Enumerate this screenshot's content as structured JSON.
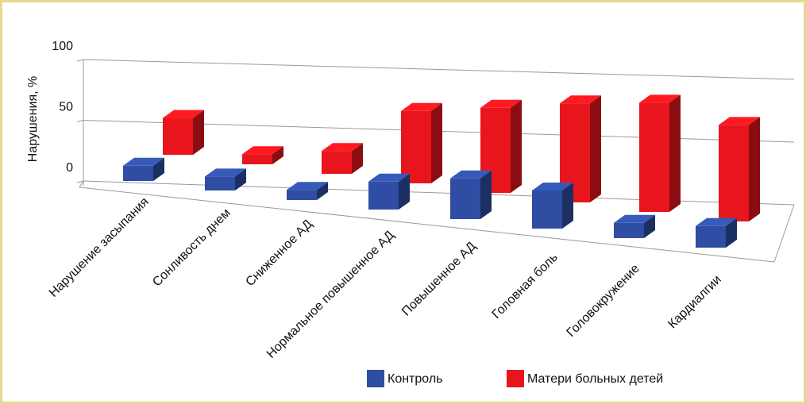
{
  "chart_data": {
    "type": "bar3d",
    "y_label": "Нарушения, %",
    "categories": [
      "Нарушение засыпания",
      "Сонливость днем",
      "Сниженное АД",
      "Нормальное повышенное АД",
      "Повышенное АД",
      "Головная боль",
      "Головокружение",
      "Кардиалгии"
    ],
    "series": [
      {
        "name": "Контроль",
        "color": "#2f4ea3",
        "values": [
          12,
          11,
          8,
          22,
          32,
          30,
          12,
          17
        ]
      },
      {
        "name": "Матери больных детей",
        "color": "#e8161c",
        "values": [
          29,
          8,
          18,
          57,
          67,
          78,
          86,
          76
        ]
      }
    ],
    "ylim": [
      0,
      100
    ],
    "yticks": [
      0,
      50,
      100
    ],
    "grid": true,
    "legend": "bottom"
  }
}
